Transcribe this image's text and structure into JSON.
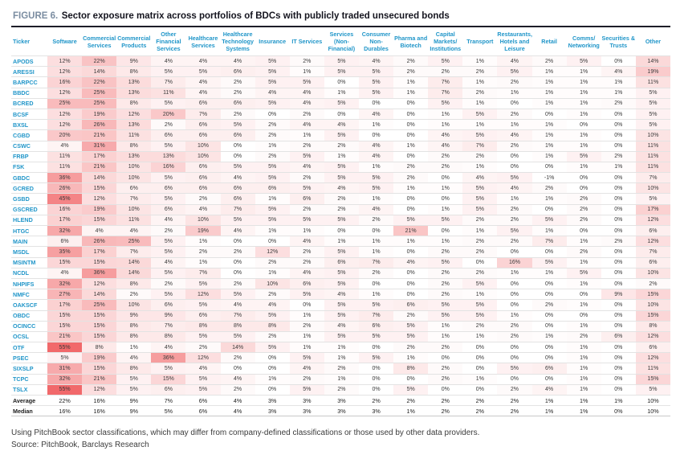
{
  "figure": {
    "label": "FIGURE 6.",
    "title": "Sector exposure matrix across portfolios of BDCs with publicly traded unsecured bonds"
  },
  "chart_data": {
    "type": "heatmap",
    "title": "Sector exposure matrix across portfolios of BDCs with publicly traded unsecured bonds",
    "unit": "%",
    "ticker_header": "Ticker",
    "columns": [
      "Software",
      "Commercial\nServices",
      "Commercial\nProducts",
      "Other\nFinancial\nServices",
      "Healthcare\nServices",
      "Healthcare\nTechnology\nSystems",
      "Insurance",
      "IT Services",
      "Services\n(Non-\nFinancial)",
      "Consumer\nNon-\nDurables",
      "Pharma and\nBiotech",
      "Capital\nMarkets/\nInstitutions",
      "Transport",
      "Restaurants,\nHotels and\nLeisure",
      "Retail",
      "Comms/\nNetworking",
      "Securities &\nTrusts",
      "Other"
    ],
    "rows": [
      {
        "ticker": "APODS",
        "values": [
          12,
          22,
          9,
          4,
          4,
          4,
          5,
          2,
          5,
          4,
          2,
          5,
          1,
          4,
          2,
          5,
          0,
          14
        ]
      },
      {
        "ticker": "ARESSI",
        "values": [
          12,
          14,
          8,
          5,
          5,
          6,
          5,
          1,
          5,
          5,
          2,
          2,
          2,
          5,
          1,
          1,
          4,
          19
        ]
      },
      {
        "ticker": "BARPCC",
        "values": [
          16,
          22,
          13,
          7,
          4,
          2,
          5,
          5,
          0,
          5,
          1,
          7,
          1,
          2,
          1,
          1,
          1,
          11
        ]
      },
      {
        "ticker": "BBDC",
        "values": [
          12,
          25,
          13,
          11,
          4,
          2,
          4,
          4,
          1,
          5,
          1,
          7,
          2,
          1,
          1,
          1,
          1,
          5
        ]
      },
      {
        "ticker": "BCRED",
        "values": [
          25,
          25,
          8,
          5,
          6,
          6,
          5,
          4,
          5,
          0,
          0,
          5,
          1,
          0,
          1,
          1,
          2,
          5
        ]
      },
      {
        "ticker": "BCSF",
        "values": [
          12,
          19,
          12,
          20,
          7,
          2,
          0,
          2,
          0,
          4,
          0,
          1,
          5,
          2,
          0,
          1,
          0,
          5
        ]
      },
      {
        "ticker": "BXSL",
        "values": [
          12,
          26,
          13,
          2,
          6,
          5,
          2,
          4,
          4,
          1,
          0,
          1,
          1,
          1,
          1,
          0,
          0,
          5
        ]
      },
      {
        "ticker": "CGBD",
        "values": [
          20,
          21,
          11,
          6,
          6,
          6,
          2,
          1,
          5,
          0,
          0,
          4,
          5,
          4,
          1,
          1,
          0,
          10
        ]
      },
      {
        "ticker": "CSWC",
        "values": [
          4,
          31,
          8,
          5,
          10,
          0,
          1,
          2,
          2,
          4,
          1,
          4,
          7,
          2,
          1,
          1,
          0,
          11
        ]
      },
      {
        "ticker": "FRBP",
        "values": [
          11,
          17,
          13,
          13,
          10,
          0,
          2,
          5,
          1,
          4,
          0,
          2,
          2,
          0,
          1,
          5,
          2,
          11
        ]
      },
      {
        "ticker": "FSK",
        "values": [
          11,
          21,
          10,
          16,
          6,
          5,
          5,
          4,
          5,
          1,
          2,
          2,
          1,
          0,
          0,
          1,
          1,
          11
        ]
      },
      {
        "ticker": "GBDC",
        "values": [
          36,
          14,
          10,
          5,
          6,
          4,
          5,
          2,
          5,
          5,
          2,
          0,
          4,
          5,
          -1,
          0,
          0,
          7
        ]
      },
      {
        "ticker": "GCRED",
        "values": [
          26,
          15,
          6,
          6,
          6,
          6,
          6,
          5,
          4,
          5,
          1,
          1,
          5,
          4,
          2,
          0,
          0,
          10
        ]
      },
      {
        "ticker": "GSBD",
        "values": [
          45,
          12,
          7,
          5,
          2,
          6,
          1,
          6,
          2,
          1,
          0,
          0,
          5,
          1,
          1,
          2,
          0,
          5
        ]
      },
      {
        "ticker": "GSCRED",
        "values": [
          16,
          19,
          10,
          6,
          4,
          7,
          5,
          2,
          2,
          4,
          0,
          1,
          5,
          2,
          0,
          2,
          0,
          17
        ]
      },
      {
        "ticker": "HLEND",
        "values": [
          17,
          15,
          11,
          4,
          10,
          5,
          5,
          5,
          5,
          2,
          5,
          5,
          2,
          2,
          5,
          2,
          0,
          12
        ]
      },
      {
        "ticker": "HTGC",
        "values": [
          32,
          4,
          4,
          2,
          19,
          4,
          1,
          1,
          0,
          0,
          21,
          0,
          1,
          5,
          1,
          0,
          0,
          6
        ]
      },
      {
        "ticker": "MAIN",
        "values": [
          6,
          26,
          25,
          5,
          1,
          0,
          0,
          4,
          1,
          1,
          1,
          1,
          2,
          2,
          7,
          1,
          2,
          12
        ]
      },
      {
        "ticker": "MSDL",
        "values": [
          35,
          17,
          7,
          5,
          2,
          2,
          12,
          2,
          5,
          1,
          0,
          2,
          2,
          0,
          0,
          2,
          0,
          7
        ]
      },
      {
        "ticker": "MSINTM",
        "values": [
          15,
          15,
          14,
          4,
          1,
          0,
          2,
          2,
          6,
          7,
          4,
          5,
          0,
          16,
          5,
          1,
          0,
          6
        ]
      },
      {
        "ticker": "NCDL",
        "values": [
          4,
          36,
          14,
          5,
          7,
          0,
          1,
          4,
          5,
          2,
          0,
          2,
          2,
          1,
          1,
          5,
          0,
          10
        ]
      },
      {
        "ticker": "NHPIFS",
        "values": [
          32,
          12,
          8,
          2,
          5,
          2,
          10,
          6,
          5,
          0,
          0,
          2,
          5,
          0,
          0,
          1,
          0,
          2
        ]
      },
      {
        "ticker": "NMFC",
        "values": [
          27,
          14,
          2,
          5,
          12,
          5,
          2,
          5,
          4,
          1,
          0,
          2,
          1,
          0,
          0,
          0,
          9,
          15
        ]
      },
      {
        "ticker": "OAKSCF",
        "values": [
          17,
          25,
          10,
          6,
          5,
          4,
          4,
          0,
          5,
          5,
          6,
          5,
          5,
          0,
          2,
          1,
          0,
          10
        ]
      },
      {
        "ticker": "OBDC",
        "values": [
          15,
          15,
          9,
          9,
          6,
          7,
          5,
          1,
          5,
          7,
          2,
          5,
          5,
          1,
          0,
          0,
          0,
          15
        ]
      },
      {
        "ticker": "OCINCC",
        "values": [
          15,
          15,
          8,
          7,
          8,
          8,
          8,
          2,
          4,
          6,
          5,
          1,
          2,
          2,
          0,
          1,
          0,
          8
        ]
      },
      {
        "ticker": "OCSL",
        "values": [
          21,
          15,
          8,
          8,
          5,
          5,
          2,
          1,
          5,
          5,
          5,
          1,
          1,
          2,
          1,
          2,
          6,
          12
        ]
      },
      {
        "ticker": "OTF",
        "values": [
          55,
          8,
          1,
          4,
          2,
          14,
          5,
          1,
          1,
          0,
          2,
          2,
          0,
          0,
          0,
          1,
          0,
          6
        ]
      },
      {
        "ticker": "PSEC",
        "values": [
          5,
          19,
          4,
          36,
          12,
          2,
          0,
          5,
          1,
          5,
          1,
          0,
          0,
          0,
          0,
          1,
          0,
          12
        ]
      },
      {
        "ticker": "SIXSLP",
        "values": [
          31,
          15,
          8,
          5,
          4,
          0,
          0,
          4,
          2,
          0,
          8,
          2,
          0,
          5,
          6,
          1,
          0,
          11
        ]
      },
      {
        "ticker": "TCPC",
        "values": [
          32,
          21,
          5,
          15,
          5,
          4,
          1,
          2,
          1,
          0,
          0,
          2,
          1,
          0,
          0,
          1,
          0,
          15
        ]
      },
      {
        "ticker": "TSLX",
        "values": [
          55,
          12,
          5,
          6,
          5,
          2,
          0,
          5,
          2,
          0,
          5,
          0,
          0,
          2,
          4,
          1,
          0,
          5
        ]
      }
    ],
    "summary_rows": [
      {
        "label": "Average",
        "values": [
          22,
          16,
          9,
          7,
          6,
          4,
          3,
          3,
          3,
          2,
          2,
          2,
          2,
          2,
          1,
          1,
          1,
          10
        ]
      },
      {
        "label": "Median",
        "values": [
          16,
          16,
          9,
          5,
          6,
          4,
          3,
          3,
          3,
          3,
          1,
          2,
          2,
          2,
          1,
          1,
          0,
          10
        ]
      }
    ],
    "color_scale": {
      "min_value": 0,
      "max_value": 55,
      "min_color": "#ffffff",
      "max_color": "#f1696b"
    },
    "legend_position": "none",
    "grid": "row-separators"
  },
  "colors": {
    "header_text": "#2196c9",
    "ticker_text": "#2196c9",
    "figure_label": "#7b8da1",
    "title_text": "#14141e",
    "cell_text": "#3a3a3a"
  },
  "footer": {
    "note": "Using PitchBook sector classifications, which may differ from company-defined classifications or those used by other data providers.",
    "source": "Source: PitchBook, Barclays Research"
  }
}
